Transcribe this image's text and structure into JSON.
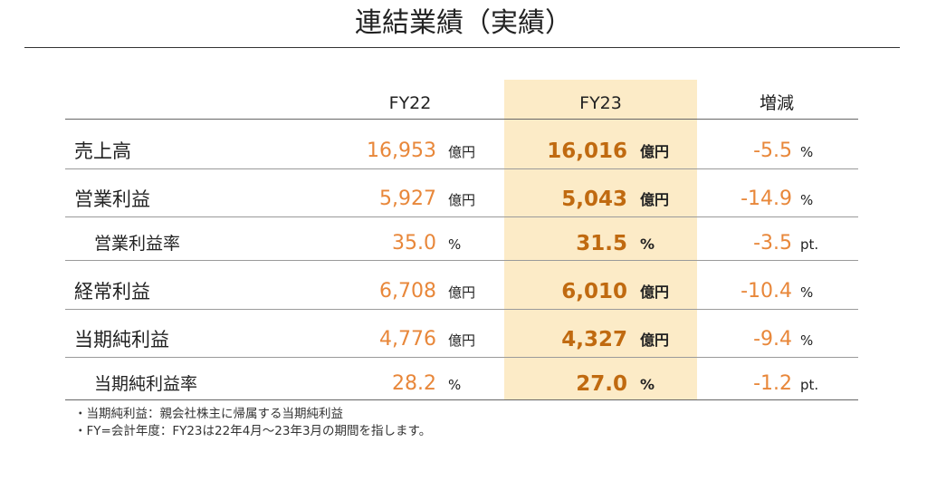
{
  "title": "連結業績（実績）",
  "columns": {
    "fy22": "FY22",
    "fy23": "FY23",
    "diff": "増減"
  },
  "rows": [
    {
      "label": "売上高",
      "fy22": "16,953",
      "fy22_unit": "億円",
      "fy23": "16,016",
      "fy23_unit": "億円",
      "diff": "-5.5",
      "diff_unit": "%"
    },
    {
      "label": "営業利益",
      "fy22": "5,927",
      "fy22_unit": "億円",
      "fy23": "5,043",
      "fy23_unit": "億円",
      "diff": "-14.9",
      "diff_unit": "%"
    },
    {
      "label": "営業利益率",
      "fy22": "35.0",
      "fy22_unit": "%",
      "fy23": "31.5",
      "fy23_unit": "%",
      "diff": "-3.5",
      "diff_unit": "pt."
    },
    {
      "label": "経常利益",
      "fy22": "6,708",
      "fy22_unit": "億円",
      "fy23": "6,010",
      "fy23_unit": "億円",
      "diff": "-10.4",
      "diff_unit": "%"
    },
    {
      "label": "当期純利益",
      "fy22": "4,776",
      "fy22_unit": "億円",
      "fy23": "4,327",
      "fy23_unit": "億円",
      "diff": "-9.4",
      "diff_unit": "%"
    },
    {
      "label": "当期純利益率",
      "fy22": "28.2",
      "fy22_unit": "%",
      "fy23": "27.0",
      "fy23_unit": "%",
      "diff": "-1.2",
      "diff_unit": "pt."
    }
  ],
  "notes": [
    "・当期純利益：親会社株主に帰属する当期純利益",
    "・FY=会計年度：FY23は22年4月～23年3月の期間を指します。"
  ],
  "colors": {
    "highlight_column": "#fcebc7",
    "fy22_values": "#e8873a",
    "fy23_values": "#c06a10",
    "diff_values": "#e8873a"
  }
}
